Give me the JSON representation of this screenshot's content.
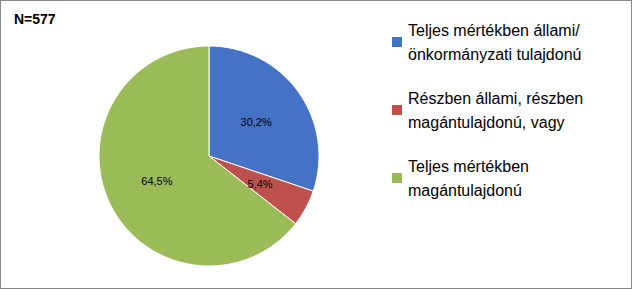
{
  "chart_data": {
    "type": "pie",
    "title": "N=577",
    "categories": [
      "Teljes mértékben állami/önkormányzati tulajdonú",
      "Részben állami, részben magántulajdonú, vagy",
      "Teljes mértékben magántulajdonú"
    ],
    "values": [
      30.2,
      5.4,
      64.5
    ],
    "value_labels": [
      "30,2%",
      "5,4%",
      "64,5%"
    ],
    "colors": [
      "#4472c4",
      "#c0504d",
      "#9bbb59"
    ],
    "data_labels": true,
    "legend": "right"
  }
}
